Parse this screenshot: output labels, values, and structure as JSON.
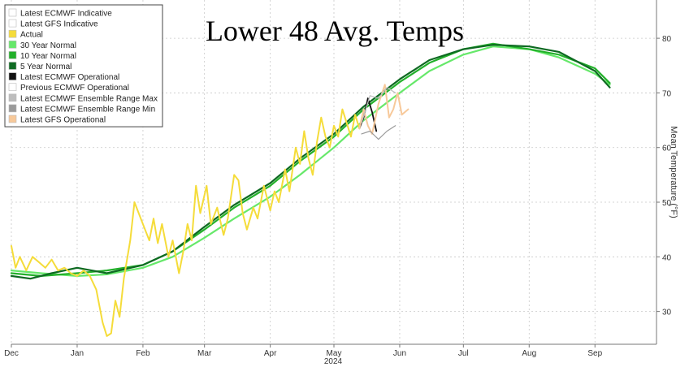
{
  "chart_data": {
    "type": "line",
    "title": "Lower 48 Avg. Temps",
    "ylabel": "Mean Temperature (°F)",
    "xlabel": "",
    "year_label": "2024",
    "ylim": [
      24,
      87
    ],
    "yticks": [
      30,
      40,
      50,
      60,
      70,
      80
    ],
    "x_range": [
      "2023-12-01",
      "2024-09-30"
    ],
    "x_ticks": [
      {
        "label": "Dec",
        "date": "2023-12-01"
      },
      {
        "label": "Jan",
        "date": "2024-01-01"
      },
      {
        "label": "Feb",
        "date": "2024-02-01"
      },
      {
        "label": "Mar",
        "date": "2024-03-01"
      },
      {
        "label": "Apr",
        "date": "2024-04-01"
      },
      {
        "label": "May",
        "date": "2024-05-01"
      },
      {
        "label": "Jun",
        "date": "2024-06-01"
      },
      {
        "label": "Jul",
        "date": "2024-07-01"
      },
      {
        "label": "Aug",
        "date": "2024-08-01"
      },
      {
        "label": "Sep",
        "date": "2024-09-01"
      }
    ],
    "grid": true,
    "legend_position": "top-left",
    "legend": [
      {
        "name": "Latest ECMWF Indicative",
        "color": "#ffffff"
      },
      {
        "name": "Latest GFS Indicative",
        "color": "#ffffff"
      },
      {
        "name": "Actual",
        "color": "#f5dc3a"
      },
      {
        "name": "30 Year Normal",
        "color": "#66e86a"
      },
      {
        "name": "10 Year Normal",
        "color": "#22b02a"
      },
      {
        "name": "5 Year Normal",
        "color": "#0e6a22"
      },
      {
        "name": "Latest ECMWF Operational",
        "color": "#111111"
      },
      {
        "name": "Previous ECMWF Operational",
        "color": "#ffffff"
      },
      {
        "name": "Latest ECMWF Ensemble Range Max",
        "color": "#bdbdbd"
      },
      {
        "name": "Latest ECMWF Ensemble Range Min",
        "color": "#9a9a9a"
      },
      {
        "name": "Latest GFS Operational",
        "color": "#f7c99a"
      }
    ],
    "series": [
      {
        "name": "30 Year Normal",
        "color": "#66e86a",
        "width": 2.2,
        "points": [
          [
            "2023-12-01",
            37.5
          ],
          [
            "2023-12-15",
            37.0
          ],
          [
            "2024-01-01",
            36.5
          ],
          [
            "2024-01-15",
            36.8
          ],
          [
            "2024-02-01",
            38.0
          ],
          [
            "2024-02-15",
            40.0
          ],
          [
            "2024-03-01",
            43.5
          ],
          [
            "2024-03-15",
            47.0
          ],
          [
            "2024-04-01",
            51.0
          ],
          [
            "2024-04-15",
            55.0
          ],
          [
            "2024-05-01",
            60.0
          ],
          [
            "2024-05-15",
            65.0
          ],
          [
            "2024-06-01",
            70.0
          ],
          [
            "2024-06-15",
            74.0
          ],
          [
            "2024-07-01",
            77.0
          ],
          [
            "2024-07-15",
            78.5
          ],
          [
            "2024-08-01",
            78.0
          ],
          [
            "2024-08-15",
            76.5
          ],
          [
            "2024-09-01",
            73.5
          ],
          [
            "2024-09-08",
            71.5
          ]
        ]
      },
      {
        "name": "10 Year Normal",
        "color": "#22b02a",
        "width": 2.2,
        "points": [
          [
            "2023-12-01",
            37.0
          ],
          [
            "2023-12-15",
            36.5
          ],
          [
            "2024-01-01",
            37.0
          ],
          [
            "2024-01-15",
            37.5
          ],
          [
            "2024-02-01",
            38.5
          ],
          [
            "2024-02-15",
            41.0
          ],
          [
            "2024-03-01",
            45.0
          ],
          [
            "2024-03-15",
            49.0
          ],
          [
            "2024-04-01",
            53.0
          ],
          [
            "2024-04-15",
            57.5
          ],
          [
            "2024-05-01",
            62.0
          ],
          [
            "2024-05-15",
            67.0
          ],
          [
            "2024-06-01",
            72.0
          ],
          [
            "2024-06-15",
            75.5
          ],
          [
            "2024-07-01",
            78.0
          ],
          [
            "2024-07-15",
            79.0
          ],
          [
            "2024-08-01",
            78.0
          ],
          [
            "2024-08-15",
            77.0
          ],
          [
            "2024-09-01",
            74.5
          ],
          [
            "2024-09-08",
            71.8
          ]
        ]
      },
      {
        "name": "5 Year Normal",
        "color": "#0e6a22",
        "width": 2.2,
        "points": [
          [
            "2023-12-01",
            36.5
          ],
          [
            "2023-12-10",
            36.0
          ],
          [
            "2023-12-20",
            37.0
          ],
          [
            "2024-01-01",
            38.0
          ],
          [
            "2024-01-15",
            37.0
          ],
          [
            "2024-02-01",
            38.5
          ],
          [
            "2024-02-15",
            41.0
          ],
          [
            "2024-03-01",
            45.5
          ],
          [
            "2024-03-15",
            49.5
          ],
          [
            "2024-04-01",
            53.5
          ],
          [
            "2024-04-15",
            58.0
          ],
          [
            "2024-05-01",
            62.5
          ],
          [
            "2024-05-15",
            67.5
          ],
          [
            "2024-06-01",
            72.5
          ],
          [
            "2024-06-15",
            76.0
          ],
          [
            "2024-07-01",
            78.0
          ],
          [
            "2024-07-15",
            78.8
          ],
          [
            "2024-08-01",
            78.5
          ],
          [
            "2024-08-15",
            77.5
          ],
          [
            "2024-09-01",
            74.0
          ],
          [
            "2024-09-08",
            71.0
          ]
        ]
      },
      {
        "name": "Actual",
        "color": "#f5dc3a",
        "width": 2.0,
        "points": [
          [
            "2023-12-01",
            42.0
          ],
          [
            "2023-12-03",
            38.0
          ],
          [
            "2023-12-05",
            40.0
          ],
          [
            "2023-12-08",
            37.5
          ],
          [
            "2023-12-11",
            40.0
          ],
          [
            "2023-12-14",
            39.0
          ],
          [
            "2023-12-17",
            38.0
          ],
          [
            "2023-12-20",
            39.5
          ],
          [
            "2023-12-23",
            37.5
          ],
          [
            "2023-12-26",
            38.0
          ],
          [
            "2023-12-29",
            37.0
          ],
          [
            "2024-01-01",
            36.5
          ],
          [
            "2024-01-04",
            37.5
          ],
          [
            "2024-01-07",
            36.5
          ],
          [
            "2024-01-10",
            34.0
          ],
          [
            "2024-01-13",
            28.0
          ],
          [
            "2024-01-15",
            25.5
          ],
          [
            "2024-01-17",
            26.0
          ],
          [
            "2024-01-19",
            32.0
          ],
          [
            "2024-01-21",
            29.0
          ],
          [
            "2024-01-23",
            36.0
          ],
          [
            "2024-01-26",
            43.0
          ],
          [
            "2024-01-28",
            50.0
          ],
          [
            "2024-01-30",
            48.0
          ],
          [
            "2024-02-02",
            45.0
          ],
          [
            "2024-02-04",
            43.0
          ],
          [
            "2024-02-06",
            47.0
          ],
          [
            "2024-02-08",
            42.5
          ],
          [
            "2024-02-10",
            46.0
          ],
          [
            "2024-02-13",
            40.0
          ],
          [
            "2024-02-15",
            43.0
          ],
          [
            "2024-02-18",
            37.0
          ],
          [
            "2024-02-20",
            41.0
          ],
          [
            "2024-02-22",
            46.0
          ],
          [
            "2024-02-24",
            43.0
          ],
          [
            "2024-02-26",
            53.0
          ],
          [
            "2024-02-28",
            48.0
          ],
          [
            "2024-03-02",
            53.0
          ],
          [
            "2024-03-04",
            46.0
          ],
          [
            "2024-03-07",
            49.0
          ],
          [
            "2024-03-10",
            44.0
          ],
          [
            "2024-03-12",
            47.0
          ],
          [
            "2024-03-15",
            55.0
          ],
          [
            "2024-03-17",
            54.0
          ],
          [
            "2024-03-19",
            48.0
          ],
          [
            "2024-03-21",
            45.0
          ],
          [
            "2024-03-24",
            49.0
          ],
          [
            "2024-03-26",
            47.0
          ],
          [
            "2024-03-29",
            53.0
          ],
          [
            "2024-04-01",
            48.5
          ],
          [
            "2024-04-03",
            52.0
          ],
          [
            "2024-04-05",
            50.0
          ],
          [
            "2024-04-08",
            56.0
          ],
          [
            "2024-04-10",
            52.0
          ],
          [
            "2024-04-13",
            60.0
          ],
          [
            "2024-04-15",
            57.0
          ],
          [
            "2024-04-17",
            63.0
          ],
          [
            "2024-04-19",
            58.0
          ],
          [
            "2024-04-21",
            55.0
          ],
          [
            "2024-04-23",
            61.0
          ],
          [
            "2024-04-25",
            65.5
          ],
          [
            "2024-04-27",
            62.0
          ],
          [
            "2024-04-29",
            60.0
          ],
          [
            "2024-05-01",
            64.0
          ],
          [
            "2024-05-03",
            62.0
          ],
          [
            "2024-05-05",
            67.0
          ],
          [
            "2024-05-07",
            64.5
          ],
          [
            "2024-05-09",
            62.0
          ],
          [
            "2024-05-11",
            66.0
          ],
          [
            "2024-05-13",
            63.5
          ]
        ]
      },
      {
        "name": "Latest ECMWF Operational",
        "color": "#111111",
        "width": 1.8,
        "points": [
          [
            "2024-05-13",
            63.5
          ],
          [
            "2024-05-15",
            65.5
          ],
          [
            "2024-05-17",
            69.0
          ],
          [
            "2024-05-19",
            66.5
          ],
          [
            "2024-05-21",
            63.0
          ]
        ]
      },
      {
        "name": "Latest GFS Operational",
        "color": "#f7c99a",
        "width": 2.0,
        "points": [
          [
            "2024-05-13",
            63.5
          ],
          [
            "2024-05-15",
            67.0
          ],
          [
            "2024-05-17",
            64.0
          ],
          [
            "2024-05-19",
            62.5
          ],
          [
            "2024-05-22",
            68.0
          ],
          [
            "2024-05-25",
            71.5
          ],
          [
            "2024-05-27",
            65.5
          ],
          [
            "2024-05-29",
            67.0
          ],
          [
            "2024-05-31",
            70.0
          ],
          [
            "2024-06-02",
            66.0
          ],
          [
            "2024-06-05",
            67.0
          ]
        ]
      },
      {
        "name": "Latest ECMWF Ensemble Range Max",
        "color": "#bdbdbd",
        "width": 1.2,
        "points": [
          [
            "2024-05-14",
            64.5
          ],
          [
            "2024-05-18",
            69.5
          ],
          [
            "2024-05-22",
            69.0
          ],
          [
            "2024-05-26",
            71.0
          ],
          [
            "2024-05-30",
            70.0
          ]
        ]
      },
      {
        "name": "Latest ECMWF Ensemble Range Min",
        "color": "#9a9a9a",
        "width": 1.2,
        "points": [
          [
            "2024-05-14",
            62.5
          ],
          [
            "2024-05-18",
            63.0
          ],
          [
            "2024-05-22",
            61.5
          ],
          [
            "2024-05-26",
            63.0
          ],
          [
            "2024-05-30",
            64.0
          ]
        ]
      }
    ]
  }
}
